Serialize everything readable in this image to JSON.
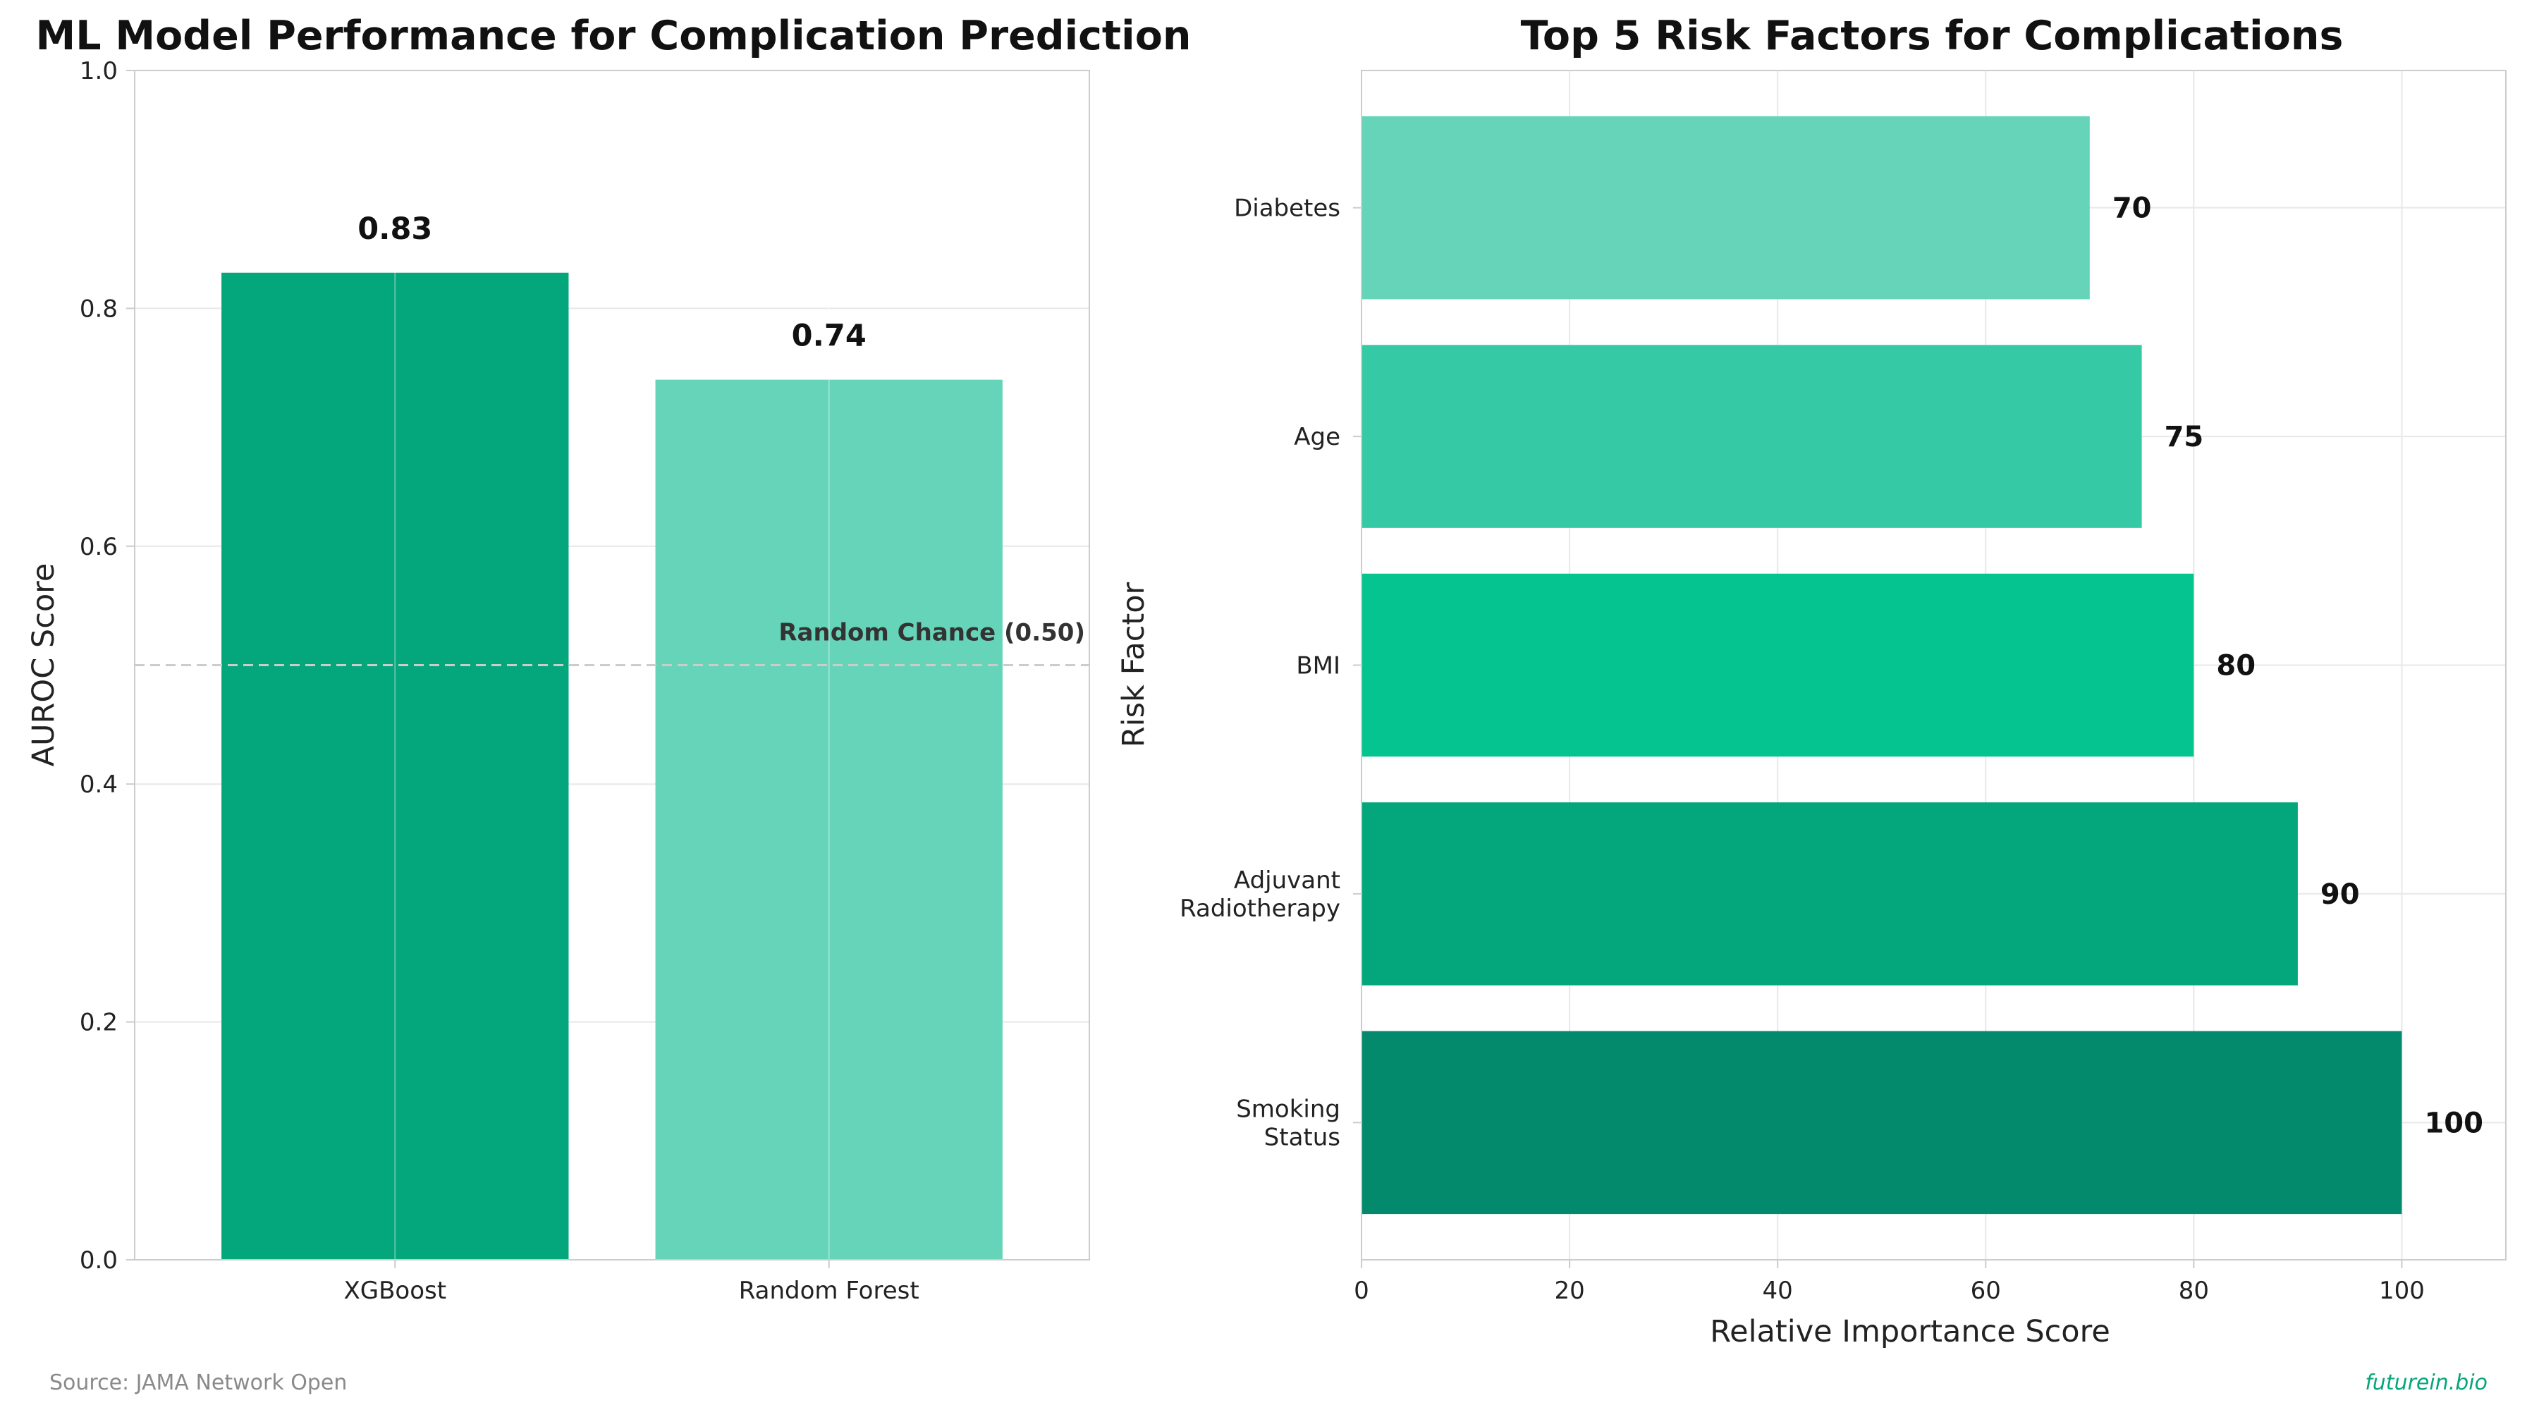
{
  "colors": {
    "xgboost": "#04a77b",
    "random_forest": "#66d4b8",
    "diabetes": "#66d4b8",
    "age": "#35c9a6",
    "bmi": "#05c48f",
    "adjuvant_radiotherapy": "#04a77b",
    "smoking_status": "#038a6c",
    "reference_line": "#cccccc",
    "grid": "#e8e8e8",
    "brand": "#05a67a",
    "source": "#8a8a8a"
  },
  "footer": {
    "source": "Source: JAMA Network Open",
    "brand": "futurein.bio"
  },
  "chart_data": [
    {
      "type": "bar",
      "title": "ML Model Performance for Complication Prediction",
      "xlabel": "",
      "ylabel": "AUROC Score",
      "categories": [
        "XGBoost",
        "Random Forest"
      ],
      "values": [
        0.83,
        0.74
      ],
      "value_labels": [
        "0.83",
        "0.74"
      ],
      "ylim": [
        0,
        1.0
      ],
      "yticks": [
        0.0,
        0.2,
        0.4,
        0.6,
        0.8,
        1.0
      ],
      "ytick_labels": [
        "0.0",
        "0.2",
        "0.4",
        "0.6",
        "0.8",
        "1.0"
      ],
      "reference_line": {
        "y": 0.5,
        "label": "Random Chance (0.50)",
        "style": "dashed"
      },
      "grid": true
    },
    {
      "type": "bar",
      "orientation": "horizontal",
      "title": "Top 5 Risk Factors for Complications",
      "xlabel": "Relative Importance Score",
      "ylabel": "Risk Factor",
      "categories": [
        "Diabetes",
        "Age",
        "BMI",
        "Adjuvant Radiotherapy",
        "Smoking Status"
      ],
      "category_lines": [
        [
          "Diabetes"
        ],
        [
          "Age"
        ],
        [
          "BMI"
        ],
        [
          "Adjuvant",
          "Radiotherapy"
        ],
        [
          "Smoking",
          "Status"
        ]
      ],
      "values": [
        70,
        75,
        80,
        90,
        100
      ],
      "value_labels": [
        "70",
        "75",
        "80",
        "90",
        "100"
      ],
      "xlim": [
        0,
        110
      ],
      "xticks": [
        0,
        20,
        40,
        60,
        80,
        100
      ],
      "xtick_labels": [
        "0",
        "20",
        "40",
        "60",
        "80",
        "100"
      ],
      "grid": true
    }
  ]
}
